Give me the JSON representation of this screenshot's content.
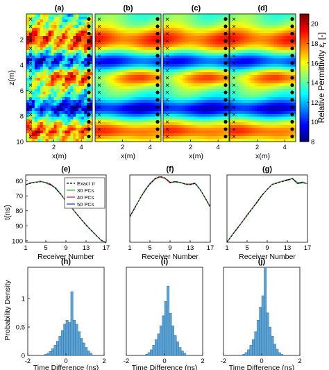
{
  "figure": {
    "row1": {
      "ylabel": "z(m)",
      "xlabel": "x(m)",
      "xticks": [
        2,
        4
      ],
      "yticks": [
        2,
        4,
        6,
        8,
        10
      ],
      "xlim": [
        0,
        4.8
      ],
      "ylim": [
        0,
        10
      ],
      "colorbar": {
        "label": "Relative Permittivity ε",
        "label_sub": "r",
        "label_unit": "[-]",
        "ticks": [
          8,
          10,
          12,
          14,
          16,
          18,
          20
        ],
        "range": [
          8,
          21
        ],
        "colormap": [
          "#00007f",
          "#0000ff",
          "#007fff",
          "#00ffff",
          "#7fff7f",
          "#ffff00",
          "#ff7f00",
          "#ff0000",
          "#7f0000"
        ]
      },
      "panels": [
        {
          "label": "(a)",
          "kind": "true",
          "seed": 1
        },
        {
          "label": "(b)",
          "kind": "smooth",
          "seed": 2
        },
        {
          "label": "(c)",
          "kind": "smooth",
          "seed": 3
        },
        {
          "label": "(d)",
          "kind": "smooth",
          "seed": 4
        }
      ],
      "markers": {
        "left": "×",
        "right": "●",
        "count": 17
      }
    },
    "row2": {
      "ylabel": "t(ns)",
      "xlabel": "Receiver Number",
      "xticks": [
        1,
        5,
        9,
        13,
        17
      ],
      "yticks": [
        60,
        70,
        80,
        90,
        100
      ],
      "xlim": [
        1,
        17
      ],
      "ylim": [
        56,
        101
      ],
      "legend": {
        "placement": "top-right",
        "items": [
          {
            "name": "Exact τr",
            "color": "#000000",
            "dash": true
          },
          {
            "name": "30 PCs",
            "color": "#3cb44b",
            "dash": false
          },
          {
            "name": "40 PCs",
            "color": "#e6194b",
            "dash": false
          },
          {
            "name": "50 PCs",
            "color": "#1f3fbf",
            "dash": false
          }
        ]
      },
      "panels": [
        {
          "label": "(e)",
          "receivers": [
            1,
            2,
            3,
            4,
            5,
            6,
            7,
            8,
            9,
            10,
            11,
            12,
            13,
            14,
            15,
            16,
            17
          ],
          "exact": [
            62.5,
            61.5,
            61.0,
            60.5,
            61.0,
            62.5,
            65.0,
            69.0,
            73.5,
            77.5,
            81.5,
            85.5,
            89.5,
            93.0,
            96.5,
            99.5,
            101.5
          ]
        },
        {
          "label": "(f)",
          "receivers": [
            1,
            2,
            3,
            4,
            5,
            6,
            7,
            8,
            9,
            10,
            11,
            12,
            13,
            14,
            15,
            16,
            17
          ],
          "exact": [
            84.0,
            78.0,
            72.0,
            66.5,
            62.0,
            58.5,
            57.0,
            58.0,
            61.0,
            60.5,
            61.0,
            62.0,
            62.5,
            61.5,
            66.0,
            71.5,
            77.5
          ]
        },
        {
          "label": "(g)",
          "receivers": [
            1,
            2,
            3,
            4,
            5,
            6,
            7,
            8,
            9,
            10,
            11,
            12,
            13,
            14,
            15,
            16,
            17
          ],
          "exact": [
            101.0,
            96.5,
            92.0,
            87.5,
            83.0,
            78.5,
            74.0,
            69.5,
            65.5,
            62.5,
            61.5,
            60.5,
            59.5,
            58.5,
            61.5,
            61.0,
            62.0
          ]
        }
      ]
    },
    "row3": {
      "ylabel": "Probability Density",
      "xlabel": "Time Difference (ns)",
      "xticks": [
        -2,
        0,
        2
      ],
      "yticks": [
        0,
        0.5,
        1
      ],
      "xlim": [
        -2,
        2
      ],
      "ylim": [
        0,
        1.55
      ],
      "bar_color": "#5aa3d6",
      "bin_width": 0.125,
      "panels": [
        {
          "label": "(h)",
          "bin_start": -1.125,
          "density": [
            0.02,
            0.04,
            0.07,
            0.12,
            0.18,
            0.25,
            0.34,
            0.44,
            0.55,
            0.62,
            0.58,
            1.12,
            0.62,
            0.55,
            0.42,
            0.3,
            0.22,
            0.14,
            0.08,
            0.04
          ]
        },
        {
          "label": "(i)",
          "bin_start": -1.0,
          "density": [
            0.02,
            0.05,
            0.1,
            0.18,
            0.28,
            0.38,
            0.52,
            0.7,
            0.95,
            1.22,
            0.74,
            0.52,
            0.35,
            0.24,
            0.14,
            0.08,
            0.04
          ]
        },
        {
          "label": "(j)",
          "bin_start": -1.0,
          "density": [
            0.02,
            0.05,
            0.1,
            0.18,
            0.28,
            0.42,
            0.62,
            0.85,
            1.05,
            1.55,
            0.75,
            0.5,
            0.34,
            0.2,
            0.11,
            0.05,
            0.02
          ]
        }
      ]
    }
  }
}
